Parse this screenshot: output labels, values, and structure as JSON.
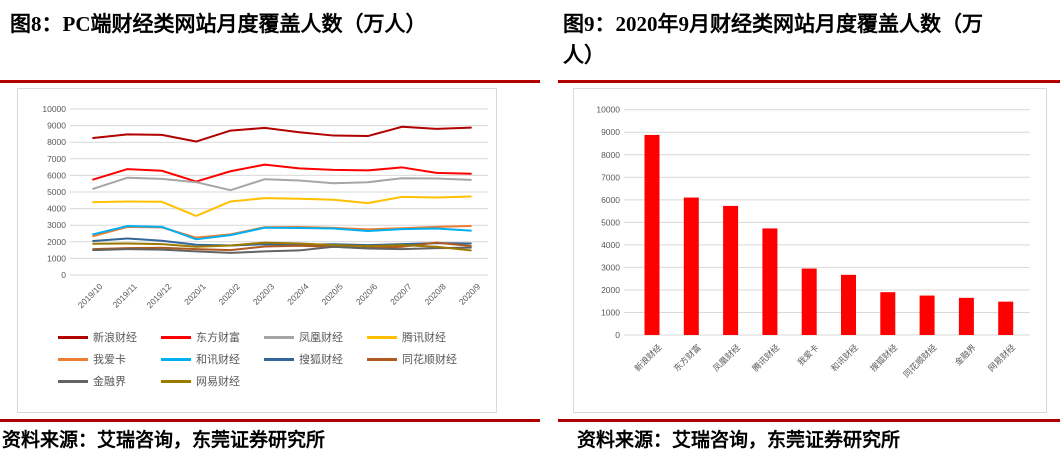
{
  "style": {
    "rule_color": "#B00000",
    "grid_color": "#D9D9D9",
    "border_color": "#D9D9D9",
    "axis_text_color": "#595959",
    "title_color": "#000000"
  },
  "panels": {
    "left": {
      "source": "资料来源：艾瑞咨询，东莞证券研究所"
    },
    "right": {
      "source": "资料来源：艾瑞咨询，东莞证券研究所"
    }
  },
  "chart_data": [
    {
      "type": "line",
      "title": "图8：PC端财经类网站月度覆盖人数（万人）",
      "categories": [
        "2019/10",
        "2019/11",
        "2019/12",
        "2020/1",
        "2020/2",
        "2020/3",
        "2020/4",
        "2020/5",
        "2020/6",
        "2020/7",
        "2020/8",
        "2020/9"
      ],
      "series": [
        {
          "name": "新浪财经",
          "color": "#B00000",
          "values": [
            8250,
            8470,
            8440,
            8040,
            8700,
            8860,
            8600,
            8400,
            8370,
            8930,
            8800,
            8880
          ]
        },
        {
          "name": "东方财富",
          "color": "#FF0000",
          "values": [
            5750,
            6380,
            6280,
            5630,
            6250,
            6650,
            6420,
            6330,
            6300,
            6480,
            6150,
            6100
          ]
        },
        {
          "name": "凤凰财经",
          "color": "#A6A6A6",
          "values": [
            5190,
            5860,
            5790,
            5590,
            5110,
            5770,
            5690,
            5530,
            5590,
            5830,
            5810,
            5730
          ]
        },
        {
          "name": "腾讯财经",
          "color": "#FFC000",
          "values": [
            4390,
            4430,
            4410,
            3560,
            4430,
            4630,
            4590,
            4530,
            4330,
            4710,
            4670,
            4730
          ]
        },
        {
          "name": "我爱卡",
          "color": "#ED7D31",
          "values": [
            2340,
            2900,
            2870,
            2250,
            2450,
            2880,
            2890,
            2840,
            2750,
            2820,
            2900,
            2950
          ]
        },
        {
          "name": "和讯财经",
          "color": "#00B0F0",
          "values": [
            2450,
            2950,
            2900,
            2150,
            2400,
            2850,
            2830,
            2800,
            2650,
            2760,
            2800,
            2670
          ]
        },
        {
          "name": "搜狐财经",
          "color": "#336699",
          "values": [
            2050,
            2200,
            2060,
            1820,
            1780,
            1850,
            1820,
            1850,
            1800,
            1860,
            1920,
            1900
          ]
        },
        {
          "name": "同花顺财经",
          "color": "#AE5A21",
          "values": [
            1560,
            1620,
            1640,
            1560,
            1500,
            1720,
            1760,
            1700,
            1620,
            1700,
            1950,
            1750
          ]
        },
        {
          "name": "金融界",
          "color": "#636363",
          "values": [
            1500,
            1560,
            1530,
            1420,
            1330,
            1420,
            1480,
            1700,
            1600,
            1560,
            1620,
            1650
          ]
        },
        {
          "name": "网易财经",
          "color": "#9C7A00",
          "values": [
            1880,
            1900,
            1860,
            1700,
            1780,
            1950,
            1900,
            1800,
            1740,
            1800,
            1700,
            1480
          ]
        }
      ],
      "ylim": [
        0,
        10000
      ],
      "ytick_step": 1000,
      "yticks": [
        0,
        1000,
        2000,
        3000,
        4000,
        5000,
        6000,
        7000,
        8000,
        9000,
        10000
      ],
      "grid": true,
      "legend_position": "bottom"
    },
    {
      "type": "bar",
      "title": "图9：2020年9月财经类网站月度覆盖人数（万人）",
      "categories": [
        "新浪财经",
        "东方财富",
        "凤凰财经",
        "腾讯财经",
        "我爱卡",
        "和讯财经",
        "搜狐财经",
        "同花顺财经",
        "金融界",
        "网易财经"
      ],
      "values": [
        8880,
        6100,
        5730,
        4730,
        2950,
        2670,
        1900,
        1750,
        1650,
        1480
      ],
      "bar_color": "#FF0000",
      "ylim": [
        0,
        10000
      ],
      "ytick_step": 1000,
      "yticks": [
        0,
        1000,
        2000,
        3000,
        4000,
        5000,
        6000,
        7000,
        8000,
        9000,
        10000
      ],
      "grid": true,
      "legend_position": "none"
    }
  ]
}
